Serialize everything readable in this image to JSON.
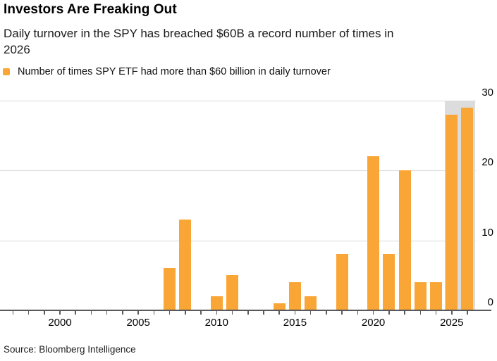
{
  "header": {
    "title": "Investors Are Freaking Out",
    "subtitle": "Daily turnover in the SPY has breached $60B a record number of times in\n2026"
  },
  "source": "Source: Bloomberg Intelligence",
  "colors": {
    "bar_orange": "#faa636",
    "highlight_gray": "#dcdcdc",
    "gridline_gray": "#dadada",
    "axis_gray": "#58595b"
  },
  "chart_data": {
    "type": "bar",
    "title": "Investors Are Freaking Out",
    "subtitle": "Daily turnover in the SPY has breached $60B a record number of times in 2026",
    "legend": "Number of times SPY ETF had more than $60 billion in daily turnover",
    "xlabel": "",
    "ylabel": "",
    "x": [
      1997,
      1998,
      1999,
      2000,
      2001,
      2002,
      2003,
      2004,
      2005,
      2006,
      2007,
      2008,
      2009,
      2010,
      2011,
      2012,
      2013,
      2014,
      2015,
      2016,
      2017,
      2018,
      2019,
      2020,
      2021,
      2022,
      2023,
      2024,
      2025,
      2026
    ],
    "values": [
      0,
      0,
      0,
      0,
      0,
      0,
      0,
      0,
      0,
      0,
      6,
      13,
      0,
      2,
      5,
      0,
      0,
      1,
      4,
      2,
      0,
      8,
      0,
      22,
      8,
      20,
      4,
      4,
      28,
      29
    ],
    "xtick_labels": [
      2000,
      2005,
      2010,
      2015,
      2020,
      2025
    ],
    "yticks": [
      0,
      10,
      20,
      30
    ],
    "ylim": [
      0,
      30
    ],
    "y_axis_side": "right",
    "grid": "horizontal",
    "legend_position": "top-left",
    "bar_color": "#faa636",
    "highlight_band": {
      "years": [
        2025,
        2026
      ],
      "color": "#dcdcdc"
    }
  }
}
